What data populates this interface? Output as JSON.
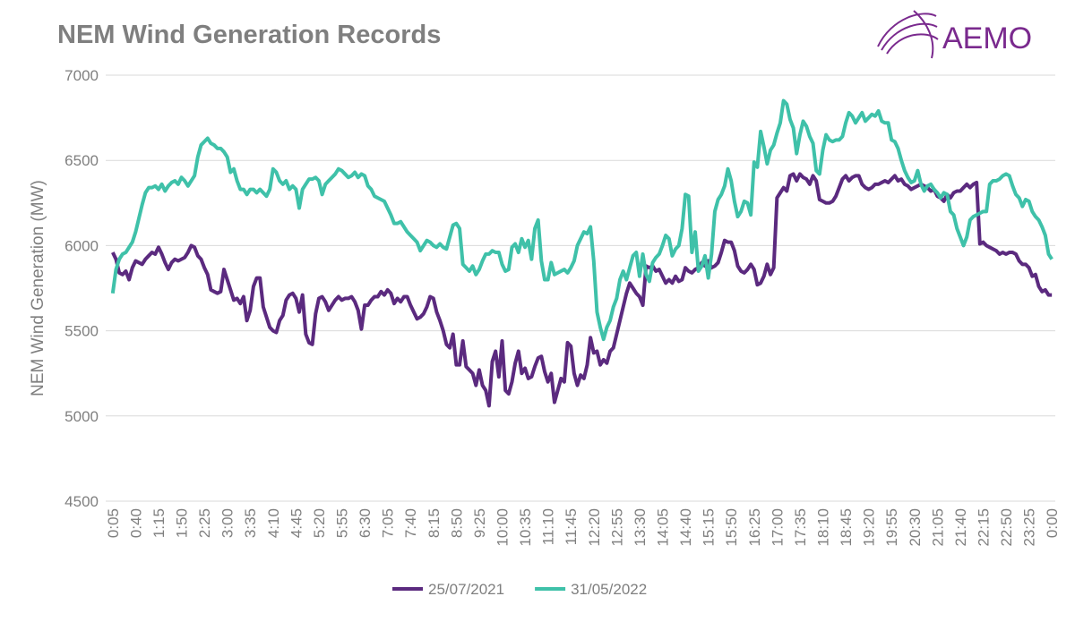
{
  "logo": "AEMO",
  "chart_data": {
    "type": "line",
    "title": "NEM Wind Generation Records",
    "y_label": "NEM Wind Generation (MW)",
    "categories": [
      "0:05",
      null,
      null,
      null,
      null,
      null,
      null,
      "0:40",
      null,
      null,
      null,
      null,
      null,
      null,
      "1:15",
      null,
      null,
      null,
      null,
      null,
      null,
      "1:50",
      null,
      null,
      null,
      null,
      null,
      null,
      "2:25",
      null,
      null,
      null,
      null,
      null,
      null,
      "3:00",
      null,
      null,
      null,
      null,
      null,
      null,
      "3:35",
      null,
      null,
      null,
      null,
      null,
      null,
      "4:10",
      null,
      null,
      null,
      null,
      null,
      null,
      "4:45",
      null,
      null,
      null,
      null,
      null,
      null,
      "5:20",
      null,
      null,
      null,
      null,
      null,
      null,
      "5:55",
      null,
      null,
      null,
      null,
      null,
      null,
      "6:30",
      null,
      null,
      null,
      null,
      null,
      null,
      "7:05",
      null,
      null,
      null,
      null,
      null,
      null,
      "7:40",
      null,
      null,
      null,
      null,
      null,
      null,
      "8:15",
      null,
      null,
      null,
      null,
      null,
      null,
      "8:50",
      null,
      null,
      null,
      null,
      null,
      null,
      "9:25",
      null,
      null,
      null,
      null,
      null,
      null,
      "10:00",
      null,
      null,
      null,
      null,
      null,
      null,
      "10:35",
      null,
      null,
      null,
      null,
      null,
      null,
      "11:10",
      null,
      null,
      null,
      null,
      null,
      null,
      "11:45",
      null,
      null,
      null,
      null,
      null,
      null,
      "12:20",
      null,
      null,
      null,
      null,
      null,
      null,
      "12:55",
      null,
      null,
      null,
      null,
      null,
      null,
      "13:30",
      null,
      null,
      null,
      null,
      null,
      null,
      "14:05",
      null,
      null,
      null,
      null,
      null,
      null,
      "14:40",
      null,
      null,
      null,
      null,
      null,
      null,
      "15:15",
      null,
      null,
      null,
      null,
      null,
      null,
      "15:50",
      null,
      null,
      null,
      null,
      null,
      null,
      "16:25",
      null,
      null,
      null,
      null,
      null,
      null,
      "17:00",
      null,
      null,
      null,
      null,
      null,
      null,
      "17:35",
      null,
      null,
      null,
      null,
      null,
      null,
      "18:10",
      null,
      null,
      null,
      null,
      null,
      null,
      "18:45",
      null,
      null,
      null,
      null,
      null,
      null,
      "19:20",
      null,
      null,
      null,
      null,
      null,
      null,
      "19:55",
      null,
      null,
      null,
      null,
      null,
      null,
      "20:30",
      null,
      null,
      null,
      null,
      null,
      null,
      "21:05",
      null,
      null,
      null,
      null,
      null,
      null,
      "21:40",
      null,
      null,
      null,
      null,
      null,
      null,
      "22:15",
      null,
      null,
      null,
      null,
      null,
      null,
      "22:50",
      null,
      null,
      null,
      null,
      null,
      null,
      "23:25",
      null,
      null,
      null,
      null,
      null,
      null,
      "0:00"
    ],
    "series": [
      {
        "name": "25/07/2021",
        "color": "#5b2a7f",
        "values": [
          5960,
          5920,
          5840,
          5830,
          5850,
          5800,
          5870,
          5910,
          5900,
          5890,
          5920,
          5940,
          5960,
          5950,
          5990,
          5950,
          5900,
          5860,
          5900,
          5920,
          5910,
          5920,
          5930,
          5960,
          6000,
          5990,
          5940,
          5920,
          5870,
          5830,
          5740,
          5730,
          5720,
          5730,
          5860,
          5800,
          5740,
          5680,
          5690,
          5660,
          5700,
          5560,
          5620,
          5760,
          5810,
          5810,
          5640,
          5580,
          5520,
          5500,
          5490,
          5560,
          5590,
          5680,
          5710,
          5720,
          5690,
          5610,
          5710,
          5480,
          5430,
          5420,
          5600,
          5690,
          5700,
          5670,
          5620,
          5650,
          5680,
          5700,
          5680,
          5690,
          5690,
          5700,
          5670,
          5620,
          5510,
          5650,
          5650,
          5680,
          5700,
          5700,
          5730,
          5710,
          5740,
          5720,
          5660,
          5690,
          5670,
          5700,
          5700,
          5650,
          5610,
          5570,
          5580,
          5600,
          5640,
          5700,
          5690,
          5610,
          5560,
          5500,
          5420,
          5400,
          5480,
          5300,
          5300,
          5440,
          5290,
          5270,
          5250,
          5180,
          5270,
          5180,
          5150,
          5060,
          5320,
          5380,
          5230,
          5440,
          5150,
          5130,
          5200,
          5310,
          5380,
          5250,
          5280,
          5220,
          5230,
          5290,
          5340,
          5350,
          5260,
          5200,
          5250,
          5080,
          5150,
          5220,
          5200,
          5430,
          5410,
          5250,
          5180,
          5240,
          5220,
          5300,
          5460,
          5370,
          5380,
          5300,
          5330,
          5310,
          5380,
          5400,
          5480,
          5560,
          5640,
          5720,
          5780,
          5750,
          5720,
          5700,
          5650,
          5880,
          5870,
          5880,
          5850,
          5860,
          5820,
          5780,
          5800,
          5780,
          5820,
          5790,
          5800,
          5870,
          5850,
          5840,
          5860,
          5870,
          5900,
          5880,
          5910,
          5870,
          5880,
          5900,
          5960,
          6030,
          6020,
          6020,
          5970,
          5880,
          5850,
          5840,
          5860,
          5890,
          5860,
          5770,
          5780,
          5820,
          5890,
          5830,
          5870,
          6280,
          6310,
          6340,
          6320,
          6410,
          6420,
          6380,
          6420,
          6400,
          6390,
          6360,
          6410,
          6380,
          6270,
          6260,
          6250,
          6250,
          6260,
          6290,
          6340,
          6390,
          6410,
          6380,
          6400,
          6410,
          6410,
          6360,
          6340,
          6330,
          6340,
          6360,
          6360,
          6370,
          6380,
          6370,
          6390,
          6410,
          6380,
          6390,
          6360,
          6350,
          6330,
          6340,
          6350,
          6360,
          6350,
          6340,
          6320,
          6330,
          6290,
          6280,
          6260,
          6300,
          6280,
          6310,
          6320,
          6320,
          6340,
          6360,
          6340,
          6360,
          6370,
          6010,
          6020,
          6000,
          5990,
          5980,
          5970,
          5950,
          5960,
          5950,
          5960,
          5960,
          5950,
          5910,
          5890,
          5890,
          5870,
          5820,
          5830,
          5760,
          5730,
          5740,
          5710,
          5710
        ]
      },
      {
        "name": "31/05/2022",
        "color": "#3fc1a9",
        "values": [
          5720,
          5860,
          5920,
          5950,
          5960,
          5990,
          6020,
          6080,
          6160,
          6240,
          6310,
          6340,
          6340,
          6350,
          6330,
          6360,
          6320,
          6350,
          6370,
          6380,
          6360,
          6400,
          6380,
          6350,
          6380,
          6410,
          6520,
          6590,
          6610,
          6630,
          6600,
          6590,
          6570,
          6570,
          6550,
          6520,
          6430,
          6450,
          6380,
          6330,
          6330,
          6300,
          6330,
          6330,
          6310,
          6330,
          6310,
          6290,
          6330,
          6450,
          6430,
          6380,
          6360,
          6380,
          6330,
          6350,
          6330,
          6220,
          6330,
          6360,
          6390,
          6390,
          6400,
          6380,
          6300,
          6360,
          6380,
          6400,
          6420,
          6450,
          6440,
          6420,
          6400,
          6410,
          6430,
          6400,
          6420,
          6410,
          6350,
          6330,
          6290,
          6280,
          6270,
          6260,
          6220,
          6180,
          6130,
          6130,
          6140,
          6110,
          6080,
          6060,
          6040,
          6020,
          5970,
          6000,
          6030,
          6020,
          6000,
          5990,
          6010,
          5990,
          5980,
          6050,
          6120,
          6130,
          6100,
          5890,
          5870,
          5850,
          5880,
          5830,
          5860,
          5910,
          5950,
          5950,
          5970,
          5960,
          5960,
          5890,
          5850,
          5860,
          5990,
          6010,
          5960,
          6040,
          5990,
          6030,
          5920,
          6100,
          6150,
          5910,
          5800,
          5800,
          5900,
          5830,
          5840,
          5850,
          5860,
          5840,
          5870,
          5910,
          6000,
          6040,
          6080,
          6070,
          6110,
          5910,
          5610,
          5520,
          5450,
          5520,
          5560,
          5640,
          5690,
          5800,
          5850,
          5800,
          5870,
          5940,
          5960,
          5820,
          5950,
          5830,
          5790,
          5900,
          5930,
          5950,
          6000,
          6060,
          6040,
          5940,
          5980,
          6000,
          6100,
          6300,
          6290,
          5960,
          6080,
          5850,
          5880,
          5940,
          5810,
          5950,
          6200,
          6270,
          6300,
          6350,
          6450,
          6380,
          6260,
          6170,
          6200,
          6260,
          6250,
          6180,
          6490,
          6460,
          6670,
          6580,
          6480,
          6560,
          6590,
          6660,
          6720,
          6850,
          6830,
          6740,
          6690,
          6540,
          6650,
          6730,
          6700,
          6640,
          6600,
          6440,
          6420,
          6560,
          6650,
          6620,
          6610,
          6620,
          6620,
          6640,
          6720,
          6780,
          6760,
          6720,
          6750,
          6780,
          6730,
          6750,
          6770,
          6760,
          6790,
          6730,
          6720,
          6720,
          6620,
          6610,
          6570,
          6500,
          6440,
          6400,
          6370,
          6380,
          6440,
          6360,
          6320,
          6350,
          6360,
          6330,
          6310,
          6280,
          6310,
          6300,
          6200,
          6180,
          6100,
          6050,
          6000,
          6050,
          6150,
          6170,
          6180,
          6190,
          6200,
          6200,
          6360,
          6380,
          6380,
          6390,
          6410,
          6420,
          6410,
          6350,
          6300,
          6280,
          6230,
          6270,
          6260,
          6200,
          6170,
          6150,
          6110,
          6060,
          5950,
          5920
        ]
      }
    ],
    "ylim": [
      4500,
      7000
    ],
    "yticks": [
      4500,
      5000,
      5500,
      6000,
      6500,
      7000
    ],
    "grid": true,
    "legend": "bottom"
  }
}
